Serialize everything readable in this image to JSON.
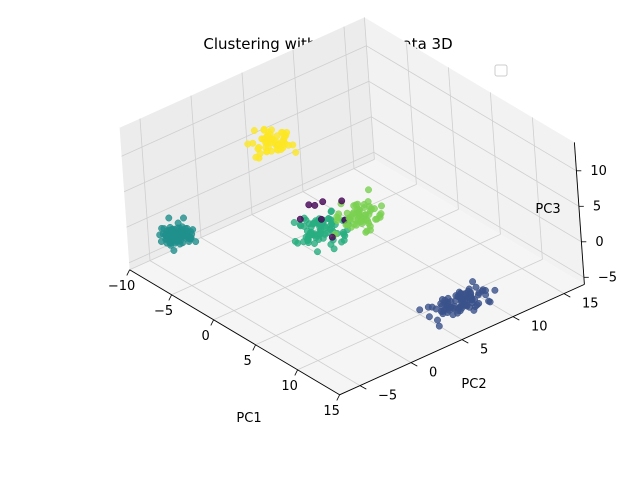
{
  "chart_data": {
    "type": "scatter",
    "title": "Clustering with Reduced Data 3D",
    "xlabel": "PC1",
    "ylabel": "PC2",
    "zlabel": "PC3",
    "xticks": [
      "−10",
      "−5",
      "0",
      "5",
      "10",
      "15"
    ],
    "yticks": [
      "−5",
      "0",
      "5",
      "10",
      "15"
    ],
    "zticks": [
      "−5",
      "0",
      "5",
      "10"
    ],
    "xlim": [
      -10,
      15
    ],
    "ylim": [
      -7,
      17
    ],
    "zlim": [
      -6,
      14
    ],
    "grid": true,
    "legend": {
      "placement": "top-right",
      "entries": []
    },
    "colormap": "viridis",
    "clusters": [
      {
        "id": 0,
        "color": "#440154",
        "n": 8,
        "x": [
          -1,
          3
        ],
        "y": [
          -2,
          8
        ],
        "z": [
          -2,
          8
        ]
      },
      {
        "id": 1,
        "color": "#3b528b",
        "n": 90,
        "x": [
          9.5,
          14
        ],
        "y": [
          4,
          11
        ],
        "z": [
          -5.5,
          -3.5
        ]
      },
      {
        "id": 2,
        "color": "#21908d",
        "n": 90,
        "x": [
          -8.5,
          -4.5
        ],
        "y": [
          -7,
          -3
        ],
        "z": [
          -1.5,
          1.5
        ]
      },
      {
        "id": 3,
        "color": "#28ae80",
        "n": 80,
        "x": [
          -2.5,
          2
        ],
        "y": [
          1,
          7
        ],
        "z": [
          -4,
          2
        ]
      },
      {
        "id": 4,
        "color": "#7ad151",
        "n": 60,
        "x": [
          0,
          4
        ],
        "y": [
          3,
          9
        ],
        "z": [
          -1,
          4
        ]
      },
      {
        "id": 5,
        "color": "#fde725",
        "n": 60,
        "x": [
          -5,
          -2
        ],
        "y": [
          0,
          5
        ],
        "z": [
          8,
          13
        ]
      }
    ]
  }
}
